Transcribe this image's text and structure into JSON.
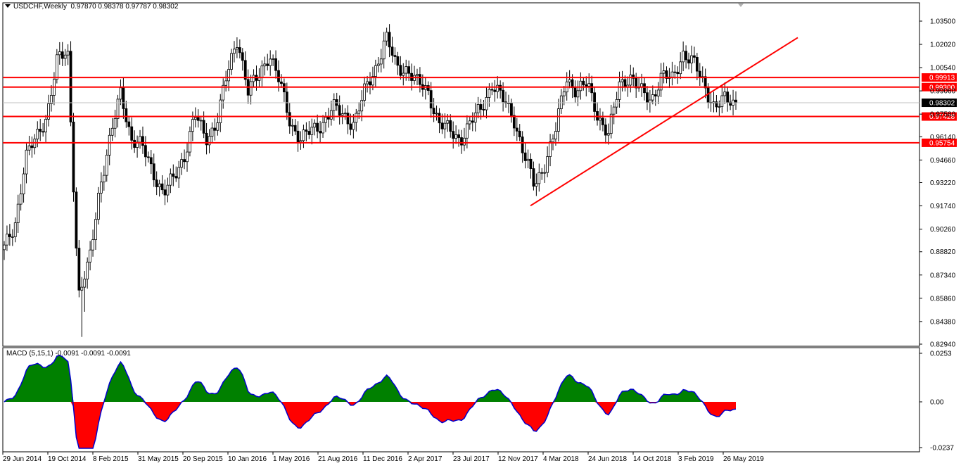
{
  "header": {
    "symbol_label": "USDCHF,Weekly",
    "ohlc": "0.97870 0.98378 0.97787 0.98302"
  },
  "chart_data": {
    "type": "candlestick",
    "symbol": "USDCHF",
    "timeframe": "Weekly",
    "ylim": [
      0.8294,
      1.0422
    ],
    "price_ticks": [
      "1.03500",
      "1.02020",
      "1.00540",
      "0.99060",
      "0.97580",
      "0.96140",
      "0.94660",
      "0.93220",
      "0.91740",
      "0.90260",
      "0.88820",
      "0.87340",
      "0.85860",
      "0.84380",
      "0.82940"
    ],
    "current_price": "0.98302",
    "horizontal_levels": [
      {
        "value": 0.99913,
        "label": "0.99913"
      },
      {
        "value": 0.993,
        "label": "0.99300"
      },
      {
        "value": 0.97428,
        "label": "0.97428"
      },
      {
        "value": 0.95754,
        "label": "0.95754"
      }
    ],
    "trendline": {
      "from": [
        "19 Feb 2018",
        0.9175
      ],
      "to": [
        "Sep 2019",
        1.0245
      ]
    },
    "date_ticks": [
      "29 Jun 2014",
      "19 Oct 2014",
      "8 Feb 2015",
      "31 May 2015",
      "20 Sep 2015",
      "10 Jan 2016",
      "1 May 2016",
      "21 Aug 2016",
      "11 Dec 2016",
      "2 Apr 2017",
      "23 Jul 2017",
      "12 Nov 2017",
      "4 Mar 2018",
      "24 Jun 2018",
      "14 Oct 2018",
      "3 Feb 2019",
      "26 May 2019"
    ],
    "price_path": [
      [
        "29 Jun 2014",
        0.89
      ],
      [
        "Aug 2014",
        0.905
      ],
      [
        "Sep 2014",
        0.948
      ],
      [
        "19 Oct 2014",
        0.96
      ],
      [
        "Nov 2014",
        0.975
      ],
      [
        "Dec 2014",
        1.01
      ],
      [
        "Jan 2015",
        1.015
      ],
      [
        "15 Jan 2015",
        0.86
      ],
      [
        "Jan 2015",
        0.88
      ],
      [
        "Feb 2015",
        0.93
      ],
      [
        "8 Feb 2015",
        0.96
      ],
      [
        "Mar 2015",
        0.99
      ],
      [
        "Mar 2015",
        0.96
      ],
      [
        "Apr 2015",
        0.955
      ],
      [
        "May 2015",
        0.94
      ],
      [
        "31 May 2015",
        0.925
      ],
      [
        "Jun 2015",
        0.935
      ],
      [
        "Jul 2015",
        0.95
      ],
      [
        "Aug 2015",
        0.975
      ],
      [
        "Aug 2015",
        0.96
      ],
      [
        "20 Sep 2015",
        0.97
      ],
      [
        "Oct 2015",
        1.0
      ],
      [
        "Nov 2015",
        1.025
      ],
      [
        "Nov 2015",
        0.99
      ],
      [
        "Dec 2015",
        1.0
      ],
      [
        "10 Jan 2016",
        1.015
      ],
      [
        "Feb 2016",
        0.995
      ],
      [
        "Mar 2016",
        0.97
      ],
      [
        "Apr 2016",
        0.96
      ],
      [
        "1 May 2016",
        0.965
      ],
      [
        "Jun 2016",
        0.97
      ],
      [
        "Jul 2016",
        0.98
      ],
      [
        "21 Aug 2016",
        0.975
      ],
      [
        "Sep 2016",
        0.97
      ],
      [
        "Oct 2016",
        0.99
      ],
      [
        "Nov 2016",
        1.005
      ],
      [
        "11 Dec 2016",
        1.025
      ],
      [
        "Jan 2017",
        1.005
      ],
      [
        "Feb 2017",
        1.005
      ],
      [
        "Mar 2017",
        0.995
      ],
      [
        "2 Apr 2017",
        0.99
      ],
      [
        "May 2017",
        0.97
      ],
      [
        "Jun 2017",
        0.965
      ],
      [
        "23 Jul 2017",
        0.96
      ],
      [
        "Aug 2017",
        0.97
      ],
      [
        "Sep 2017",
        0.98
      ],
      [
        "Oct 2017",
        0.995
      ],
      [
        "12 Nov 2017",
        0.985
      ],
      [
        "Dec 2017",
        0.975
      ],
      [
        "Jan 2018",
        0.95
      ],
      [
        "Feb 2018",
        0.93
      ],
      [
        "4 Mar 2018",
        0.945
      ],
      [
        "Apr 2018",
        0.965
      ],
      [
        "May 2018",
        1.0
      ],
      [
        "24 Jun 2018",
        0.99
      ],
      [
        "Jul 2018",
        0.995
      ],
      [
        "Aug 2018",
        0.975
      ],
      [
        "Sep 2018",
        0.962
      ],
      [
        "14 Oct 2018",
        0.995
      ],
      [
        "Nov 2018",
        1.0
      ],
      [
        "Dec 2018",
        0.99
      ],
      [
        "Jan 2019",
        0.985
      ],
      [
        "3 Feb 2019",
        1.0
      ],
      [
        "Mar 2019",
        0.998
      ],
      [
        "Apr 2019",
        1.015
      ],
      [
        "May 2019",
        1.008
      ],
      [
        "26 May 2019",
        0.995
      ],
      [
        "Jun 2019",
        0.98
      ],
      [
        "Jul 2019",
        0.985
      ],
      [
        "Aug 2019",
        0.983
      ]
    ]
  },
  "macd": {
    "label": "MACD (5,15,1) -0.0091 -0.0091 -0.0091",
    "ylim": [
      -0.0237,
      0.0253
    ],
    "ticks": [
      "0.0253",
      "0.00",
      "-0.0237"
    ],
    "colors": {
      "positive": "#008000",
      "negative": "#ff0000",
      "line": "#0000cd"
    }
  },
  "colors": {
    "level_line": "#ff0000",
    "trendline": "#ff0000",
    "current_price_bg": "#000000",
    "level_label_bg": "#ff0000",
    "label_text": "#ffffff"
  }
}
